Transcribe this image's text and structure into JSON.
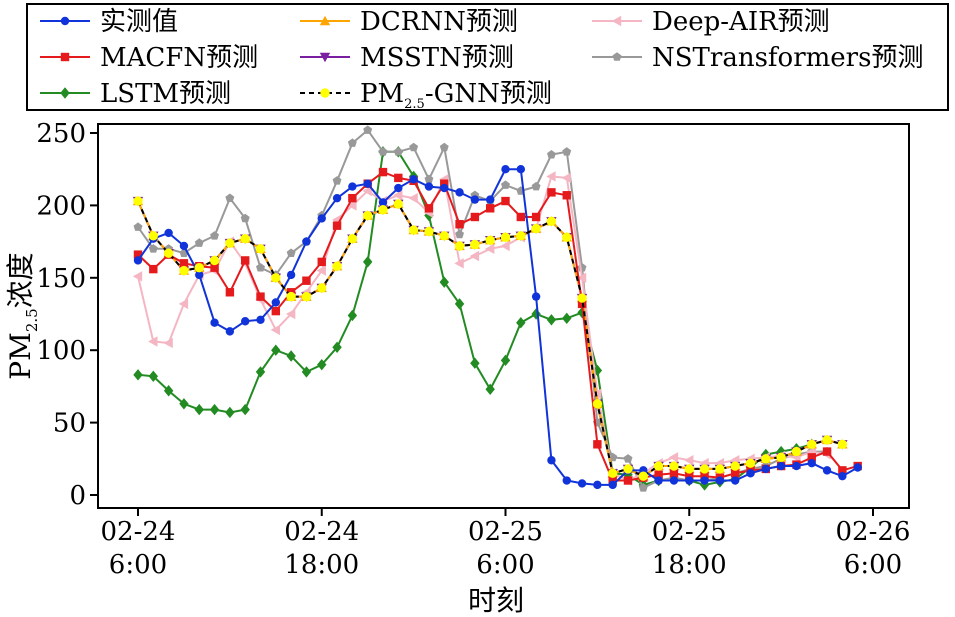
{
  "chart_data": {
    "type": "line",
    "title": "",
    "xlabel": "时刻",
    "ylabel": "PM₂.₅浓度",
    "ylabel_main": "PM",
    "ylabel_sub": "2.5",
    "ylabel_tail": "浓度",
    "ylim": [
      0,
      250
    ],
    "xlim": [
      0,
      49
    ],
    "x_unit": "hours since 02-24 6:00",
    "yticks": [
      0,
      50,
      100,
      150,
      200,
      250
    ],
    "xticks": [
      {
        "x": 0,
        "line1": "02-24",
        "line2": "6:00"
      },
      {
        "x": 12,
        "line1": "02-24",
        "line2": "18:00"
      },
      {
        "x": 24,
        "line1": "02-25",
        "line2": "6:00"
      },
      {
        "x": 36,
        "line1": "02-25",
        "line2": "18:00"
      },
      {
        "x": 48,
        "line1": "02-26",
        "line2": "6:00"
      }
    ],
    "legend_position": "top",
    "series": [
      {
        "name": "LSTM预测",
        "legend": "LSTM预测",
        "color": "#228B22",
        "marker": "diamond",
        "dashed": false,
        "values": [
          83,
          82,
          72,
          63,
          59,
          59,
          57,
          59,
          85,
          100,
          96,
          85,
          90,
          102,
          124,
          161,
          237,
          237,
          220,
          193,
          147,
          132,
          91,
          73,
          93,
          119,
          125,
          121,
          122,
          126,
          86,
          15,
          14,
          7,
          10,
          11,
          10,
          7,
          9,
          11,
          19,
          28,
          30,
          32,
          35
        ]
      },
      {
        "name": "NSTransformers预测",
        "legend": "NSTransformers预测",
        "color": "#999999",
        "marker": "pentagon",
        "dashed": false,
        "values": [
          185,
          170,
          170,
          167,
          174,
          179,
          205,
          191,
          157,
          152,
          167,
          175,
          193,
          217,
          243,
          252,
          237,
          237,
          240,
          218,
          240,
          180,
          207,
          203,
          214,
          210,
          213,
          235,
          237,
          157,
          50,
          26,
          25,
          5,
          10,
          12,
          10,
          10,
          12,
          15,
          18,
          20,
          25,
          28,
          30,
          30
        ]
      },
      {
        "name": "Deep-AIR预测",
        "legend": "Deep-AIR预测",
        "color": "#F4B6C2",
        "marker": "triangle-left",
        "dashed": false,
        "values": [
          151,
          106,
          105,
          132,
          152,
          155,
          175,
          160,
          135,
          114,
          125,
          140,
          155,
          190,
          200,
          210,
          203,
          207,
          205,
          195,
          218,
          160,
          165,
          170,
          172,
          178,
          184,
          220,
          219,
          150,
          70,
          15,
          10,
          15,
          22,
          26,
          24,
          22,
          22,
          24,
          25,
          26,
          27,
          26,
          30,
          28
        ]
      },
      {
        "name": "MSSTN预测",
        "legend": "MSSTN预测",
        "color": "#7B1FA2",
        "marker": "triangle-down",
        "dashed": false,
        "values": [
          203,
          179,
          167,
          155,
          157,
          162,
          174,
          177,
          170,
          150,
          137,
          137,
          143,
          158,
          177,
          193,
          197,
          201,
          183,
          182,
          179,
          172,
          173,
          176,
          178,
          179,
          184,
          189,
          178,
          136,
          63,
          15,
          18,
          13,
          20,
          20,
          18,
          18,
          18,
          20,
          22,
          25,
          26,
          30,
          35,
          38,
          35
        ]
      },
      {
        "name": "DCRNN预测",
        "legend": "DCRNN预测",
        "color": "#FFA500",
        "marker": "triangle-up",
        "dashed": false,
        "values": [
          203,
          179,
          167,
          155,
          157,
          162,
          174,
          177,
          170,
          150,
          137,
          137,
          143,
          158,
          177,
          193,
          197,
          201,
          183,
          182,
          179,
          172,
          173,
          176,
          178,
          179,
          184,
          189,
          178,
          136,
          63,
          15,
          18,
          13,
          20,
          20,
          18,
          18,
          18,
          20,
          22,
          25,
          26,
          30,
          35,
          38,
          35
        ]
      },
      {
        "name": "MACFN预测",
        "legend": "MACFN预测",
        "color": "#E41A1C",
        "marker": "square",
        "dashed": false,
        "values": [
          166,
          156,
          166,
          160,
          158,
          157,
          140,
          162,
          137,
          127,
          140,
          148,
          161,
          186,
          205,
          215,
          223,
          219,
          217,
          198,
          215,
          187,
          192,
          198,
          203,
          192,
          192,
          209,
          207,
          132,
          35,
          10,
          10,
          12,
          14,
          15,
          13,
          13,
          12,
          15,
          17,
          18,
          20,
          21,
          26,
          30,
          17,
          20
        ]
      },
      {
        "name": "实测值",
        "legend": "实测值",
        "color": "#1034D9",
        "marker": "circle",
        "dashed": false,
        "values": [
          162,
          177,
          181,
          172,
          152,
          119,
          113,
          120,
          121,
          133,
          152,
          175,
          191,
          205,
          213,
          215,
          202,
          212,
          218,
          213,
          212,
          209,
          204,
          204,
          225,
          225,
          137,
          24,
          10,
          8,
          7,
          7,
          17,
          17,
          10,
          10,
          10,
          10,
          10,
          10,
          15,
          18,
          20,
          20,
          22,
          17,
          13,
          19
        ]
      },
      {
        "name": "PM2.5-GNN预测",
        "legend_main": "PM",
        "legend_sub": "2.5",
        "legend_tail": "-GNN预测",
        "color": "#000000",
        "marker": "circle-yellow",
        "dashed": true,
        "values": [
          203,
          179,
          167,
          155,
          157,
          162,
          174,
          177,
          170,
          150,
          137,
          137,
          143,
          158,
          177,
          193,
          197,
          201,
          183,
          182,
          179,
          172,
          173,
          176,
          178,
          179,
          184,
          189,
          178,
          136,
          63,
          15,
          18,
          13,
          20,
          20,
          18,
          18,
          18,
          20,
          22,
          25,
          26,
          30,
          35,
          38,
          35
        ]
      }
    ]
  }
}
